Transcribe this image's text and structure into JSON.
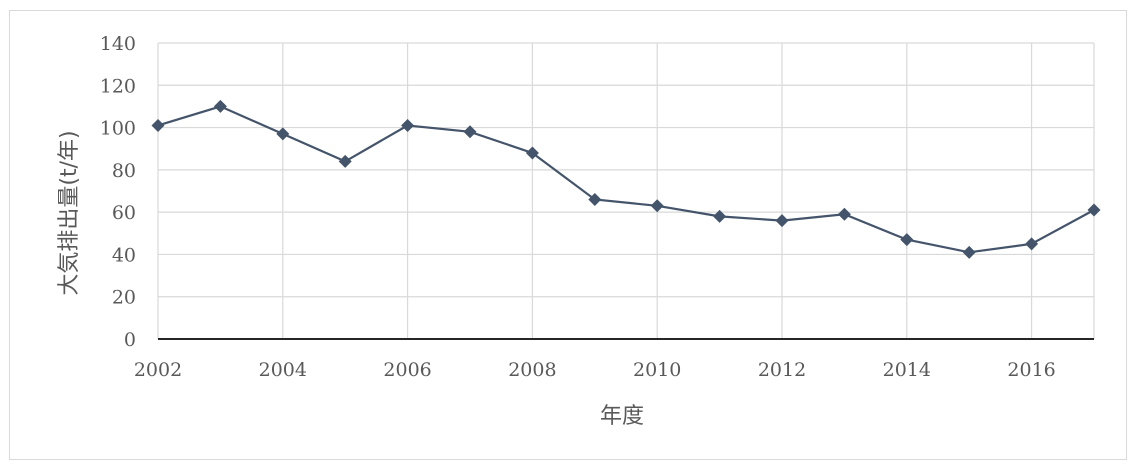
{
  "chart_data": {
    "type": "line",
    "title": "",
    "xlabel": "年度",
    "ylabel": "大気排出量(t/年)",
    "xlim": [
      2002,
      2017
    ],
    "ylim": [
      0,
      140
    ],
    "x_ticks": [
      "2002",
      "2004",
      "2006",
      "2008",
      "2010",
      "2012",
      "2014",
      "2016"
    ],
    "y_ticks": [
      "0",
      "20",
      "40",
      "60",
      "80",
      "100",
      "120",
      "140"
    ],
    "grid": true,
    "legend": "none",
    "series": [
      {
        "color": "#44546a",
        "marker": "diamond",
        "points": [
          {
            "x": 2002,
            "y": 101
          },
          {
            "x": 2003,
            "y": 110
          },
          {
            "x": 2004,
            "y": 97
          },
          {
            "x": 2005,
            "y": 84
          },
          {
            "x": 2006,
            "y": 101
          },
          {
            "x": 2007,
            "y": 98
          },
          {
            "x": 2008,
            "y": 88
          },
          {
            "x": 2009,
            "y": 66
          },
          {
            "x": 2010,
            "y": 63
          },
          {
            "x": 2011,
            "y": 58
          },
          {
            "x": 2012,
            "y": 56
          },
          {
            "x": 2013,
            "y": 59
          },
          {
            "x": 2014,
            "y": 47
          },
          {
            "x": 2015,
            "y": 41
          },
          {
            "x": 2016,
            "y": 45
          },
          {
            "x": 2017,
            "y": 61
          }
        ]
      }
    ]
  }
}
